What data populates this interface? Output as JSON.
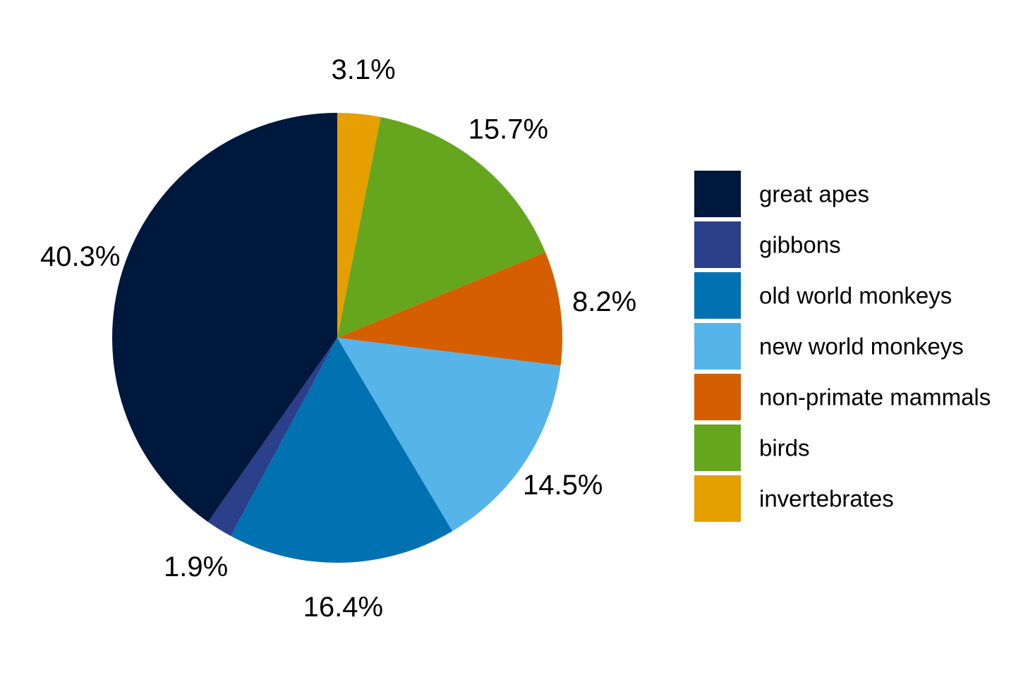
{
  "chart_data": {
    "type": "pie",
    "title": "",
    "slices": [
      {
        "name": "invertebrates",
        "value": 3.1,
        "label": "3.1%",
        "color": "#E69F00"
      },
      {
        "name": "birds",
        "value": 15.7,
        "label": "15.7%",
        "color": "#66A61E"
      },
      {
        "name": "non-primate mammals",
        "value": 8.2,
        "label": "8.2%",
        "color": "#D55E00"
      },
      {
        "name": "new world monkeys",
        "value": 14.5,
        "label": "14.5%",
        "color": "#56B4E9"
      },
      {
        "name": "old world monkeys",
        "value": 16.4,
        "label": "16.4%",
        "color": "#0072B2"
      },
      {
        "name": "gibbons",
        "value": 1.9,
        "label": "1.9%",
        "color": "#2B3F8B"
      },
      {
        "name": "great apes",
        "value": 40.3,
        "label": "40.3%",
        "color": "#00183C"
      }
    ],
    "direction": "clockwise",
    "start_angle": "12 o'clock",
    "legend": {
      "position": "right",
      "entries": [
        {
          "name": "great apes",
          "color": "#00183C"
        },
        {
          "name": "gibbons",
          "color": "#2B3F8B"
        },
        {
          "name": "old world monkeys",
          "color": "#0072B2"
        },
        {
          "name": "new world monkeys",
          "color": "#56B4E9"
        },
        {
          "name": "non-primate mammals",
          "color": "#D55E00"
        },
        {
          "name": "birds",
          "color": "#66A61E"
        },
        {
          "name": "invertebrates",
          "color": "#E69F00"
        }
      ]
    }
  }
}
